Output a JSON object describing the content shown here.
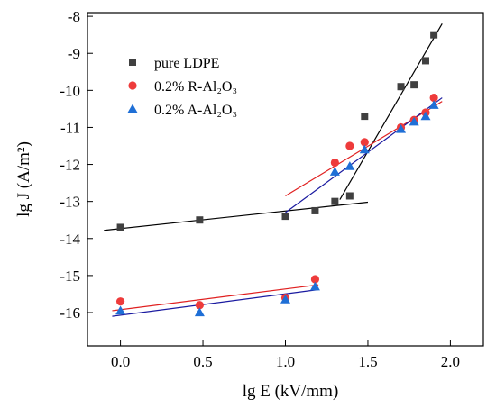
{
  "chart_data": {
    "type": "scatter",
    "xlabel": "lg E (kV/mm)",
    "ylabel": "lg J (A/m²)",
    "xlim": [
      -0.2,
      2.2
    ],
    "ylim": [
      -16.9,
      -7.9
    ],
    "xticks": [
      0.0,
      0.5,
      1.0,
      1.5,
      2.0
    ],
    "xtick_labels": [
      "0.0",
      "0.5",
      "1.0",
      "1.5",
      "2.0"
    ],
    "yticks": [
      -16,
      -15,
      -14,
      -13,
      -12,
      -11,
      -10,
      -9,
      -8
    ],
    "ytick_labels": [
      "-16",
      "-15",
      "-14",
      "-13",
      "-12",
      "-11",
      "-10",
      "-9",
      "-8"
    ],
    "grid": false,
    "legend_position": "top-left",
    "series": [
      {
        "name": "pure LDPE",
        "marker": "square",
        "color": "#404040",
        "x": [
          0.0,
          0.48,
          1.0,
          1.18,
          1.3,
          1.39,
          1.48,
          1.7,
          1.78,
          1.85,
          1.9
        ],
        "y": [
          -13.7,
          -13.5,
          -13.4,
          -13.25,
          -13.0,
          -12.85,
          -10.7,
          -9.9,
          -9.85,
          -9.2,
          -8.5
        ]
      },
      {
        "name": "0.2% R-Al₂O₃",
        "marker": "circle",
        "color": "#ee3b3b",
        "x": [
          0.0,
          0.48,
          1.0,
          1.18,
          1.3,
          1.39,
          1.48,
          1.7,
          1.78,
          1.85,
          1.9
        ],
        "y": [
          -15.7,
          -15.8,
          -15.6,
          -15.1,
          -11.95,
          -11.5,
          -11.4,
          -11.0,
          -10.8,
          -10.6,
          -10.2
        ]
      },
      {
        "name": "0.2% A-Al₂O₃",
        "marker": "triangle",
        "color": "#1f6fd6",
        "x": [
          0.0,
          0.48,
          1.0,
          1.18,
          1.3,
          1.39,
          1.48,
          1.7,
          1.78,
          1.85,
          1.9
        ],
        "y": [
          -15.95,
          -16.0,
          -15.65,
          -15.3,
          -12.2,
          -12.05,
          -11.6,
          -11.05,
          -10.85,
          -10.7,
          -10.4
        ]
      }
    ],
    "fit_lines": [
      {
        "color": "#000000",
        "x": [
          -0.1,
          1.5
        ],
        "y": [
          -13.78,
          -13.02
        ]
      },
      {
        "color": "#000000",
        "x": [
          1.33,
          1.95
        ],
        "y": [
          -12.95,
          -8.2
        ]
      },
      {
        "color": "#e02020",
        "x": [
          1.0,
          1.95
        ],
        "y": [
          -12.85,
          -10.3
        ]
      },
      {
        "color": "#1a1aa0",
        "x": [
          1.0,
          1.95
        ],
        "y": [
          -13.3,
          -10.2
        ]
      },
      {
        "color": "#e02020",
        "x": [
          -0.05,
          1.2
        ],
        "y": [
          -15.95,
          -15.25
        ]
      },
      {
        "color": "#1a1aa0",
        "x": [
          -0.05,
          1.2
        ],
        "y": [
          -16.1,
          -15.38
        ]
      }
    ]
  }
}
